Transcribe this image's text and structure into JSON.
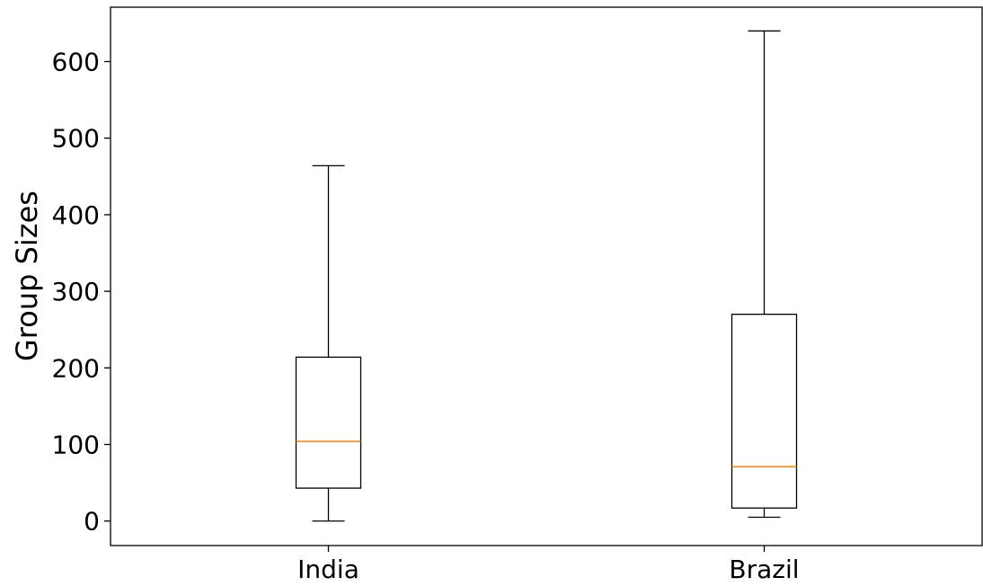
{
  "chart_data": {
    "type": "boxplot",
    "title": "",
    "xlabel": "",
    "ylabel": "Group Sizes",
    "categories": [
      "India",
      "Brazil"
    ],
    "boxes": [
      {
        "label": "India",
        "whisker_low": 0,
        "q1": 43,
        "median": 104,
        "q3": 214,
        "whisker_high": 464
      },
      {
        "label": "Brazil",
        "whisker_low": 5,
        "q1": 17,
        "median": 71,
        "q3": 270,
        "whisker_high": 640
      }
    ],
    "ylim": [
      -32,
      671
    ],
    "yticks": [
      0,
      100,
      200,
      300,
      400,
      500,
      600
    ],
    "ytick_labels": [
      "0",
      "100",
      "200",
      "300",
      "400",
      "500",
      "600"
    ],
    "grid": false,
    "colors": {
      "box": "#000000",
      "median": "#ff7f0e",
      "axes": "#000000"
    }
  }
}
